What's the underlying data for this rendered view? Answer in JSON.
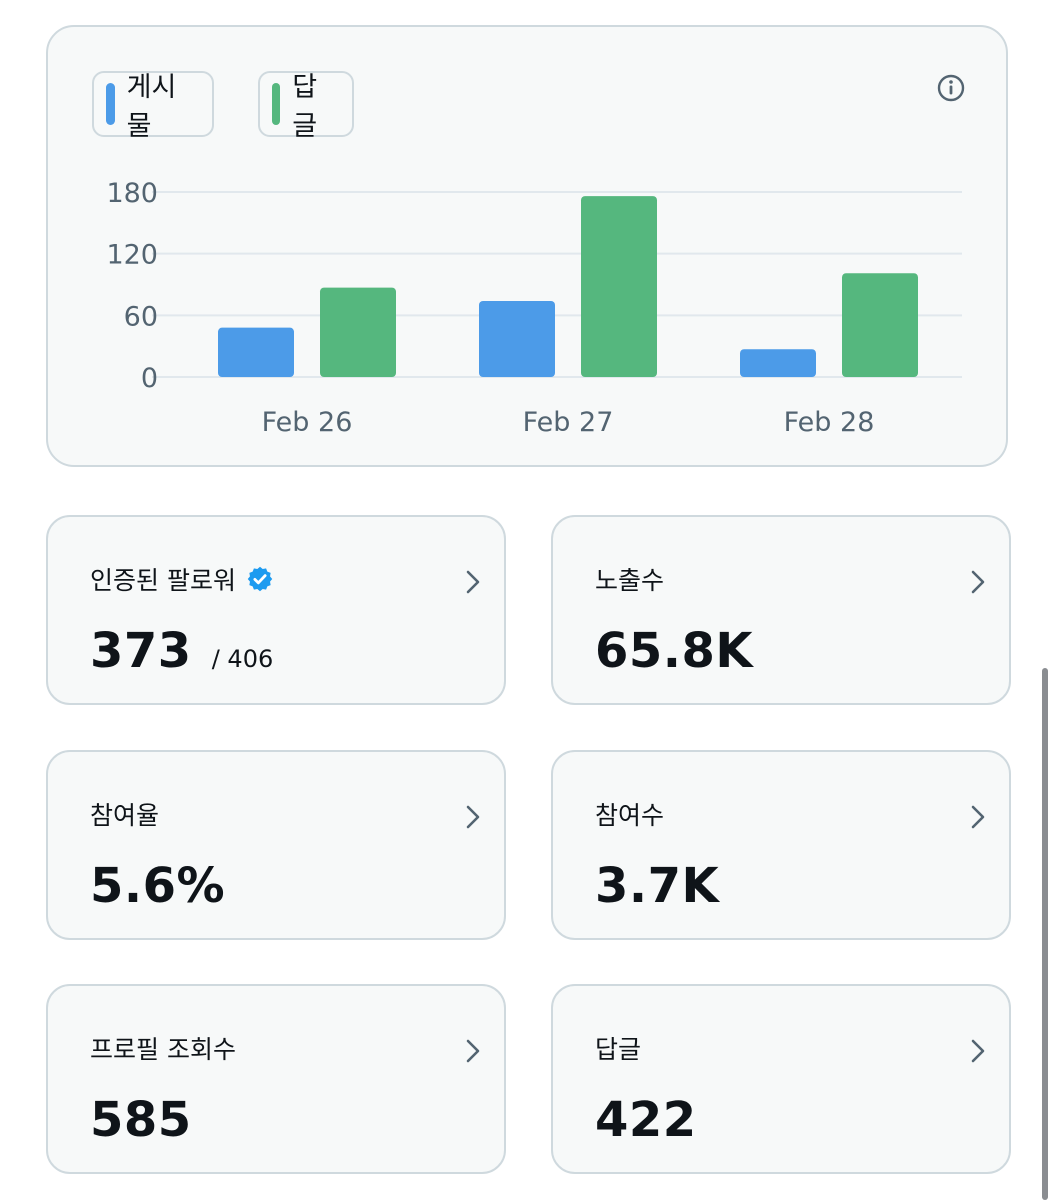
{
  "legend": [
    {
      "label": "게시물",
      "color": "#4c9be8"
    },
    {
      "label": "답글",
      "color": "#55b77e"
    }
  ],
  "chart_data": {
    "type": "bar",
    "categories": [
      "Feb 26",
      "Feb 27",
      "Feb 28"
    ],
    "series": [
      {
        "name": "게시물",
        "color": "#4c9be8",
        "values": [
          48,
          74,
          27
        ]
      },
      {
        "name": "답글",
        "color": "#55b77e",
        "values": [
          87,
          176,
          101
        ]
      }
    ],
    "yticks": [
      0,
      60,
      120,
      180
    ],
    "ylim": [
      0,
      180
    ],
    "grid": true,
    "legend_position": "top-left"
  },
  "stats": {
    "verified_followers": {
      "label": "인증된 팔로워",
      "value": "373",
      "sub": "/ 406"
    },
    "impressions": {
      "label": "노출수",
      "value": "65.8K"
    },
    "engagement_rate": {
      "label": "참여율",
      "value": "5.6%"
    },
    "engagements": {
      "label": "참여수",
      "value": "3.7K"
    },
    "profile_visits": {
      "label": "프로필 조회수",
      "value": "585"
    },
    "replies": {
      "label": "답글",
      "value": "422"
    }
  },
  "icons": {
    "info": "info-icon",
    "verified": "verified-badge-icon",
    "chevron": "chevron-right-icon"
  },
  "colors": {
    "card_background": "#f7f9f9",
    "card_border": "#cfd9de",
    "verified_blue": "#1d9bf0",
    "axis_text": "#536471"
  }
}
